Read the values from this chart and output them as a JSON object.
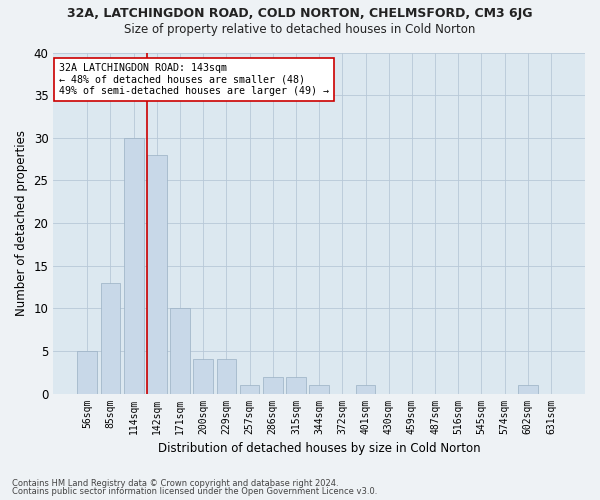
{
  "title1": "32A, LATCHINGDON ROAD, COLD NORTON, CHELMSFORD, CM3 6JG",
  "title2": "Size of property relative to detached houses in Cold Norton",
  "xlabel": "Distribution of detached houses by size in Cold Norton",
  "ylabel": "Number of detached properties",
  "categories": [
    "56sqm",
    "85sqm",
    "114sqm",
    "142sqm",
    "171sqm",
    "200sqm",
    "229sqm",
    "257sqm",
    "286sqm",
    "315sqm",
    "344sqm",
    "372sqm",
    "401sqm",
    "430sqm",
    "459sqm",
    "487sqm",
    "516sqm",
    "545sqm",
    "574sqm",
    "602sqm",
    "631sqm"
  ],
  "values": [
    5,
    13,
    30,
    28,
    10,
    4,
    4,
    1,
    2,
    2,
    1,
    0,
    1,
    0,
    0,
    0,
    0,
    0,
    0,
    1,
    0
  ],
  "bar_color": "#c8d8e8",
  "bar_edge_color": "#9ab0c4",
  "grid_color": "#b8c8d8",
  "background_color": "#dce8f0",
  "fig_background": "#eef2f5",
  "vline_color": "#cc0000",
  "annotation_text": "32A LATCHINGDON ROAD: 143sqm\n← 48% of detached houses are smaller (48)\n49% of semi-detached houses are larger (49) →",
  "annotation_box_color": "#ffffff",
  "annotation_box_edge": "#cc0000",
  "ylim": [
    0,
    40
  ],
  "yticks": [
    0,
    5,
    10,
    15,
    20,
    25,
    30,
    35,
    40
  ],
  "footnote1": "Contains HM Land Registry data © Crown copyright and database right 2024.",
  "footnote2": "Contains public sector information licensed under the Open Government Licence v3.0."
}
